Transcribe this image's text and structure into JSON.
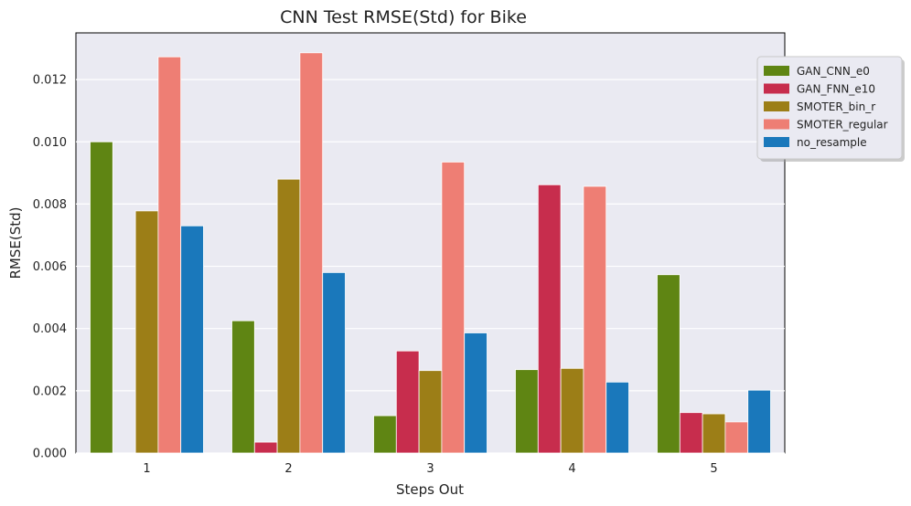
{
  "chart_data": {
    "type": "bar",
    "title": "CNN Test RMSE(Std) for Bike",
    "xlabel": "Steps Out",
    "ylabel": "RMSE(Std)",
    "categories": [
      "1",
      "2",
      "3",
      "4",
      "5"
    ],
    "ylim": [
      0,
      0.0135
    ],
    "yticks": [
      "0.000",
      "0.002",
      "0.004",
      "0.006",
      "0.008",
      "0.010",
      "0.012"
    ],
    "grid": true,
    "legend_position": "top-right",
    "series": [
      {
        "name": "GAN_CNN_e0",
        "color": "#5f8513",
        "values": [
          0.01,
          0.00425,
          0.0012,
          0.00268,
          0.00573
        ]
      },
      {
        "name": "GAN_FNN_e10",
        "color": "#c72d4d",
        "values": [
          0.0,
          0.00035,
          0.00328,
          0.00862,
          0.0013
        ]
      },
      {
        "name": "SMOTER_bin_r",
        "color": "#9c7e17",
        "values": [
          0.00778,
          0.0088,
          0.00265,
          0.00272,
          0.00126
        ]
      },
      {
        "name": "SMOTER_regular",
        "color": "#ee7e74",
        "values": [
          0.01273,
          0.01286,
          0.00935,
          0.00857,
          0.001
        ]
      },
      {
        "name": "no_resample",
        "color": "#1a78bb",
        "values": [
          0.0073,
          0.0058,
          0.00386,
          0.00228,
          0.00202
        ]
      }
    ]
  }
}
